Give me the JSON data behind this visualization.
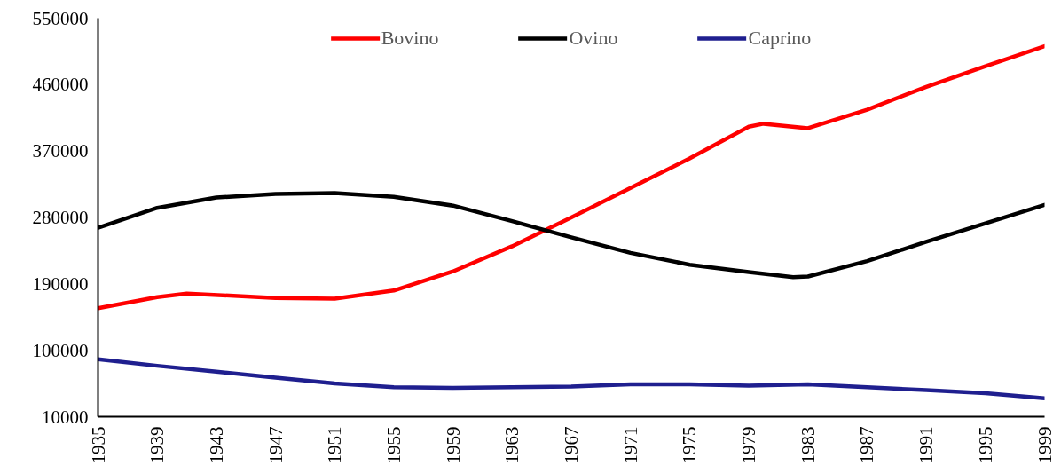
{
  "chart_data": {
    "type": "line",
    "x": [
      1935,
      1939,
      1941,
      1947,
      1951,
      1955,
      1959,
      1963,
      1967,
      1971,
      1975,
      1979,
      1980,
      1983,
      1987,
      1991,
      1995,
      1999
    ],
    "series": [
      {
        "name": "Bovino",
        "color": "#ff0000",
        "values": [
          157000,
          172000,
          177000,
          171000,
          170000,
          181000,
          207000,
          241000,
          280000,
          320000,
          360000,
          403000,
          407000,
          401000,
          426000,
          457000,
          485000,
          512000
        ]
      },
      {
        "name": "Ovino",
        "color": "#000000",
        "x": [
          1935,
          1939,
          1943,
          1947,
          1951,
          1955,
          1959,
          1963,
          1967,
          1971,
          1975,
          1979,
          1982,
          1983,
          1987,
          1991,
          1995,
          1999
        ],
        "values": [
          266000,
          293000,
          307000,
          312000,
          313000,
          308000,
          296000,
          275000,
          253000,
          232000,
          216000,
          206000,
          199000,
          200000,
          221000,
          247000,
          272000,
          297000
        ]
      },
      {
        "name": "Caprino",
        "color": "#1f1f8f",
        "x": [
          1935,
          1939,
          1943,
          1947,
          1951,
          1955,
          1959,
          1963,
          1967,
          1971,
          1975,
          1979,
          1983,
          1987,
          1991,
          1995,
          1999
        ],
        "values": [
          88000,
          79000,
          71000,
          63000,
          55000,
          50000,
          49000,
          50000,
          51000,
          54000,
          54000,
          52000,
          54000,
          50000,
          46000,
          42000,
          35000
        ]
      }
    ],
    "xlim": [
      1935,
      1999
    ],
    "xticks": [
      1935,
      1939,
      1943,
      1947,
      1951,
      1955,
      1959,
      1963,
      1967,
      1971,
      1975,
      1979,
      1983,
      1987,
      1991,
      1995,
      1999
    ],
    "ylim": [
      10000,
      550000
    ],
    "yticks": [
      10000,
      100000,
      190000,
      280000,
      370000,
      460000,
      550000
    ],
    "grid": false,
    "legend": "top",
    "marker": "none",
    "line_style": "solid"
  }
}
